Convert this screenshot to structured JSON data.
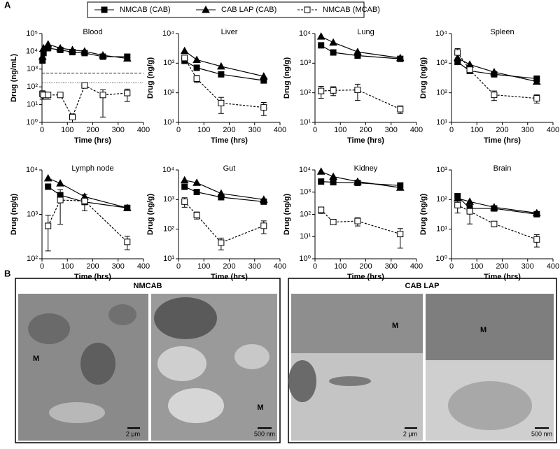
{
  "panel_labels": {
    "a": "A",
    "b": "B"
  },
  "chart_data": [
    {
      "type": "line",
      "title": "Blood",
      "ylabel": "Drug (ng/mL)",
      "xlabel": "Time (hrs)",
      "log_y": true,
      "xlim": [
        0,
        400
      ],
      "xticks": [
        0,
        100,
        200,
        300,
        400
      ],
      "ylim": [
        1,
        100000
      ],
      "yticks": [
        {
          "value": 1,
          "label": "10⁰"
        },
        {
          "value": 10,
          "label": "10¹"
        },
        {
          "value": 100,
          "label": "10²"
        },
        {
          "value": 1000,
          "label": "10³"
        },
        {
          "value": 10000,
          "label": "10⁴"
        },
        {
          "value": 100000,
          "label": "10⁵"
        }
      ],
      "x": [
        2,
        6,
        24,
        72,
        120,
        168,
        240,
        336
      ],
      "reference_lines": [
        {
          "value": 600,
          "style": "dashed"
        },
        {
          "value": 170,
          "style": "dotted"
        }
      ],
      "series": [
        {
          "name": "NMCAB (CAB)",
          "color": "#000000",
          "marker": "square",
          "filled": true,
          "dashed": false,
          "values": [
            3000,
            8000,
            15000,
            12000,
            9000,
            8000,
            5000,
            5000
          ]
        },
        {
          "name": "CAB LAP (CAB)",
          "color": "#000000",
          "marker": "triangle",
          "filled": true,
          "dashed": false,
          "values": [
            5000,
            15000,
            25000,
            15000,
            12000,
            10000,
            6000,
            4000
          ]
        },
        {
          "name": "NMCAB (MCAB)",
          "color": "#000000",
          "marker": "square",
          "filled": false,
          "dashed": true,
          "values": [
            40,
            35,
            35,
            35,
            2,
            120,
            35,
            45
          ],
          "errors": [
            20,
            15,
            15,
            10,
            1,
            30,
            33,
            30
          ]
        }
      ]
    },
    {
      "type": "line",
      "title": "Liver",
      "ylabel": "Drug (ng/g)",
      "xlabel": "Time (hrs)",
      "log_y": true,
      "xlim": [
        0,
        400
      ],
      "xticks": [
        0,
        100,
        200,
        300,
        400
      ],
      "ylim": [
        10,
        10000
      ],
      "yticks": [
        {
          "value": 10,
          "label": "10¹"
        },
        {
          "value": 100,
          "label": "10²"
        },
        {
          "value": 1000,
          "label": "10³"
        },
        {
          "value": 10000,
          "label": "10⁴"
        }
      ],
      "x": [
        24,
        72,
        168,
        336
      ],
      "series": [
        {
          "name": "NMCAB (CAB)",
          "color": "#000000",
          "marker": "square",
          "filled": true,
          "dashed": false,
          "values": [
            1200,
            700,
            420,
            260
          ]
        },
        {
          "name": "CAB LAP (CAB)",
          "color": "#000000",
          "marker": "triangle",
          "filled": true,
          "dashed": false,
          "values": [
            2600,
            1300,
            780,
            360
          ]
        },
        {
          "name": "NMCAB (MCAB)",
          "color": "#000000",
          "marker": "square",
          "filled": false,
          "dashed": true,
          "values": [
            1500,
            300,
            45,
            32
          ],
          "errors": [
            300,
            80,
            25,
            15
          ]
        }
      ]
    },
    {
      "type": "line",
      "title": "Lung",
      "ylabel": "Drug (ng/g)",
      "xlabel": "Time (hrs)",
      "log_y": true,
      "xlim": [
        0,
        400
      ],
      "xticks": [
        0,
        100,
        200,
        300,
        400
      ],
      "ylim": [
        10,
        10000
      ],
      "yticks": [
        {
          "value": 10,
          "label": "10¹"
        },
        {
          "value": 100,
          "label": "10²"
        },
        {
          "value": 1000,
          "label": "10³"
        },
        {
          "value": 10000,
          "label": "10⁴"
        }
      ],
      "x": [
        24,
        72,
        168,
        336
      ],
      "series": [
        {
          "name": "NMCAB (CAB)",
          "color": "#000000",
          "marker": "square",
          "filled": true,
          "dashed": false,
          "values": [
            4000,
            2300,
            1800,
            1400
          ]
        },
        {
          "name": "CAB LAP (CAB)",
          "color": "#000000",
          "marker": "triangle",
          "filled": true,
          "dashed": false,
          "values": [
            8000,
            5000,
            2400,
            1500
          ]
        },
        {
          "name": "NMCAB (MCAB)",
          "color": "#000000",
          "marker": "square",
          "filled": false,
          "dashed": true,
          "values": [
            115,
            120,
            125,
            28
          ],
          "errors": [
            50,
            40,
            70,
            8
          ]
        }
      ]
    },
    {
      "type": "line",
      "title": "Spleen",
      "ylabel": "Drug (ng/g)",
      "xlabel": "Time (hrs)",
      "log_y": true,
      "xlim": [
        0,
        400
      ],
      "xticks": [
        0,
        100,
        200,
        300,
        400
      ],
      "ylim": [
        10,
        10000
      ],
      "yticks": [
        {
          "value": 10,
          "label": "10¹"
        },
        {
          "value": 100,
          "label": "10²"
        },
        {
          "value": 1000,
          "label": "10³"
        },
        {
          "value": 10000,
          "label": "10⁴"
        }
      ],
      "x": [
        24,
        72,
        168,
        336
      ],
      "series": [
        {
          "name": "NMCAB (CAB)",
          "color": "#000000",
          "marker": "square",
          "filled": true,
          "dashed": false,
          "values": [
            1100,
            550,
            420,
            300
          ]
        },
        {
          "name": "CAB LAP (CAB)",
          "color": "#000000",
          "marker": "triangle",
          "filled": true,
          "dashed": false,
          "values": [
            1500,
            900,
            500,
            240
          ]
        },
        {
          "name": "NMCAB (MCAB)",
          "color": "#000000",
          "marker": "square",
          "filled": false,
          "dashed": true,
          "values": [
            2300,
            600,
            85,
            65
          ],
          "errors": [
            800,
            150,
            30,
            20
          ]
        }
      ]
    },
    {
      "type": "line",
      "title": "Lymph node",
      "ylabel": "Drug (ng/g)",
      "xlabel": "Time (hrs)",
      "log_y": true,
      "xlim": [
        0,
        400
      ],
      "xticks": [
        0,
        100,
        200,
        300,
        400
      ],
      "ylim": [
        100,
        10000
      ],
      "yticks": [
        {
          "value": 100,
          "label": "10²"
        },
        {
          "value": 1000,
          "label": "10³"
        },
        {
          "value": 10000,
          "label": "10⁴"
        }
      ],
      "x": [
        24,
        72,
        168,
        336
      ],
      "series": [
        {
          "name": "NMCAB (CAB)",
          "color": "#000000",
          "marker": "square",
          "filled": true,
          "dashed": false,
          "values": [
            4200,
            2700,
            1900,
            1400
          ]
        },
        {
          "name": "CAB LAP (CAB)",
          "color": "#000000",
          "marker": "triangle",
          "filled": true,
          "dashed": false,
          "values": [
            6500,
            5000,
            2500,
            1400
          ]
        },
        {
          "name": "NMCAB (MCAB)",
          "color": "#000000",
          "marker": "square",
          "filled": false,
          "dashed": true,
          "values": [
            550,
            2100,
            2000,
            240
          ],
          "errors": [
            400,
            1500,
            800,
            80
          ]
        }
      ]
    },
    {
      "type": "line",
      "title": "Gut",
      "ylabel": "Drug (ng/g)",
      "xlabel": "Time (hrs)",
      "log_y": true,
      "xlim": [
        0,
        400
      ],
      "xticks": [
        0,
        100,
        200,
        300,
        400
      ],
      "ylim": [
        10,
        10000
      ],
      "yticks": [
        {
          "value": 10,
          "label": "10¹"
        },
        {
          "value": 100,
          "label": "10²"
        },
        {
          "value": 1000,
          "label": "10³"
        },
        {
          "value": 10000,
          "label": "10⁴"
        }
      ],
      "x": [
        24,
        72,
        168,
        336
      ],
      "series": [
        {
          "name": "NMCAB (CAB)",
          "color": "#000000",
          "marker": "square",
          "filled": true,
          "dashed": false,
          "values": [
            2700,
            1800,
            1200,
            850
          ]
        },
        {
          "name": "CAB LAP (CAB)",
          "color": "#000000",
          "marker": "triangle",
          "filled": true,
          "dashed": false,
          "values": [
            4500,
            3700,
            1600,
            1000
          ]
        },
        {
          "name": "NMCAB (MCAB)",
          "color": "#000000",
          "marker": "square",
          "filled": false,
          "dashed": true,
          "values": [
            850,
            300,
            35,
            130
          ],
          "errors": [
            300,
            80,
            15,
            60
          ]
        }
      ]
    },
    {
      "type": "line",
      "title": "Kidney",
      "ylabel": "Drug (ng/g)",
      "xlabel": "Time (hrs)",
      "log_y": true,
      "xlim": [
        0,
        400
      ],
      "xticks": [
        0,
        100,
        200,
        300,
        400
      ],
      "ylim": [
        1,
        10000
      ],
      "yticks": [
        {
          "value": 1,
          "label": "10⁰"
        },
        {
          "value": 10,
          "label": "10¹"
        },
        {
          "value": 100,
          "label": "10²"
        },
        {
          "value": 1000,
          "label": "10³"
        },
        {
          "value": 10000,
          "label": "10⁴"
        }
      ],
      "x": [
        24,
        72,
        168,
        336
      ],
      "series": [
        {
          "name": "NMCAB (CAB)",
          "color": "#000000",
          "marker": "square",
          "filled": true,
          "dashed": false,
          "values": [
            3000,
            2800,
            2600,
            2000
          ]
        },
        {
          "name": "CAB LAP (CAB)",
          "color": "#000000",
          "marker": "triangle",
          "filled": true,
          "dashed": false,
          "values": [
            8500,
            5000,
            3000,
            1600
          ]
        },
        {
          "name": "NMCAB (MCAB)",
          "color": "#000000",
          "marker": "square",
          "filled": false,
          "dashed": true,
          "values": [
            160,
            45,
            50,
            13
          ],
          "errors": [
            50,
            10,
            20,
            10
          ]
        }
      ]
    },
    {
      "type": "line",
      "title": "Brain",
      "ylabel": "Drug (ng/g)",
      "xlabel": "Time (hrs)",
      "log_y": true,
      "xlim": [
        0,
        400
      ],
      "xticks": [
        0,
        100,
        200,
        300,
        400
      ],
      "ylim": [
        1,
        1000
      ],
      "yticks": [
        {
          "value": 1,
          "label": "10⁰"
        },
        {
          "value": 10,
          "label": "10¹"
        },
        {
          "value": 100,
          "label": "10²"
        },
        {
          "value": 1000,
          "label": "10³"
        }
      ],
      "x": [
        24,
        72,
        168,
        336
      ],
      "series": [
        {
          "name": "NMCAB (CAB)",
          "color": "#000000",
          "marker": "square",
          "filled": true,
          "dashed": false,
          "values": [
            130,
            50,
            50,
            32
          ]
        },
        {
          "name": "CAB LAP (CAB)",
          "color": "#000000",
          "marker": "triangle",
          "filled": true,
          "dashed": false,
          "values": [
            110,
            85,
            55,
            35
          ]
        },
        {
          "name": "NMCAB (MCAB)",
          "color": "#000000",
          "marker": "square",
          "filled": false,
          "dashed": true,
          "values": [
            65,
            40,
            15,
            4.5
          ],
          "errors": [
            30,
            25,
            3,
            2
          ]
        }
      ]
    }
  ],
  "micrographs": {
    "left_title": "NMCAB",
    "right_title": "CAB LAP",
    "m_labels": [
      "M",
      "M",
      "M",
      "M"
    ],
    "scale_bars": [
      "2 μm",
      "500 nm",
      "2 μm",
      "500 nm"
    ]
  }
}
